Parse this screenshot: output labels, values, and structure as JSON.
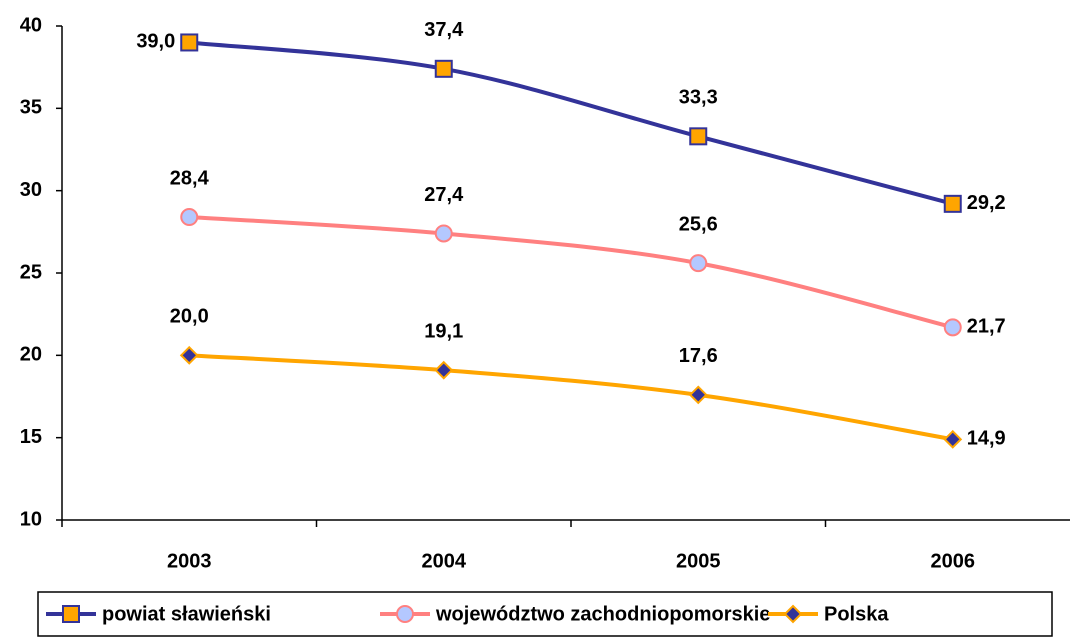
{
  "chart_data": {
    "type": "line",
    "categories": [
      "2003",
      "2004",
      "2005",
      "2006"
    ],
    "series": [
      {
        "name": "powiat sławieński",
        "color": "#333399",
        "marker": "square",
        "marker_color": "#ffa500",
        "values": [
          39.0,
          37.4,
          33.3,
          29.2
        ],
        "value_labels": [
          "39,0",
          "37,4",
          "33,3",
          "29,2"
        ]
      },
      {
        "name": "województwo zachodniopomorskie",
        "color": "#ff8080",
        "marker": "circle",
        "marker_color": "#b4c8ff",
        "values": [
          28.4,
          27.4,
          25.6,
          21.7
        ],
        "value_labels": [
          "28,4",
          "27,4",
          "25,6",
          "21,7"
        ]
      },
      {
        "name": "Polska",
        "color": "#ffa500",
        "marker": "diamond",
        "marker_color": "#333399",
        "values": [
          20.0,
          19.1,
          17.6,
          14.9
        ],
        "value_labels": [
          "20,0",
          "19,1",
          "17,6",
          "14,9"
        ]
      }
    ],
    "ylim": [
      10,
      40
    ],
    "yticks": [
      10,
      15,
      20,
      25,
      30,
      35,
      40
    ],
    "legend": "bottom"
  }
}
